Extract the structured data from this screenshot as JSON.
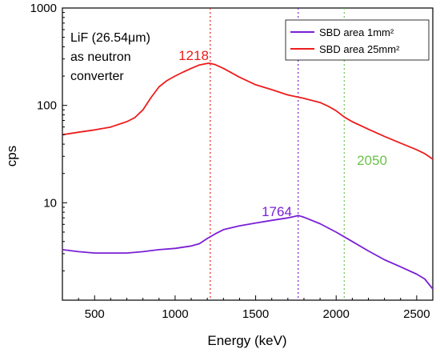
{
  "chart_data": {
    "type": "line",
    "xlabel": "Energy (keV)",
    "ylabel": "cps",
    "xlim": [
      300,
      2600
    ],
    "ylim": [
      1,
      1000
    ],
    "yscale": "log",
    "x_ticks": [
      500,
      1000,
      1500,
      2000,
      2500
    ],
    "x_tick_labels": [
      "500",
      "1000",
      "1500",
      "2000",
      "2500"
    ],
    "y_ticks": [
      10,
      100,
      1000
    ],
    "y_tick_labels": [
      "10",
      "100",
      "1000"
    ],
    "grid": false,
    "legend_position": "top-right",
    "series": [
      {
        "name": "SBD area 1mm²",
        "color": "#7a1fd6",
        "x": [
          300,
          400,
          500,
          600,
          700,
          800,
          900,
          1000,
          1100,
          1150,
          1200,
          1250,
          1300,
          1400,
          1500,
          1600,
          1700,
          1750,
          1764,
          1800,
          1900,
          2000,
          2100,
          2200,
          2300,
          2400,
          2500,
          2550,
          2600
        ],
        "y": [
          3.3,
          3.15,
          3.05,
          3.05,
          3.05,
          3.15,
          3.3,
          3.4,
          3.6,
          3.8,
          4.3,
          4.8,
          5.3,
          5.8,
          6.2,
          6.6,
          7.0,
          7.3,
          7.4,
          7.1,
          6.1,
          5.0,
          4.0,
          3.2,
          2.6,
          2.2,
          1.85,
          1.65,
          1.3
        ]
      },
      {
        "name": "SBD area 25mm²",
        "color": "#ee1c1c",
        "x": [
          300,
          400,
          500,
          600,
          700,
          750,
          800,
          850,
          900,
          950,
          1000,
          1050,
          1100,
          1150,
          1200,
          1218,
          1250,
          1300,
          1400,
          1500,
          1600,
          1700,
          1800,
          1900,
          1950,
          2000,
          2050,
          2100,
          2200,
          2300,
          2400,
          2500,
          2550,
          2600
        ],
        "y": [
          50,
          53,
          56,
          60,
          68,
          75,
          90,
          120,
          155,
          180,
          200,
          220,
          240,
          260,
          270,
          270,
          262,
          240,
          195,
          163,
          145,
          128,
          118,
          107,
          98,
          88,
          76,
          68,
          57,
          48,
          41,
          35,
          32,
          28
        ]
      }
    ],
    "reference_lines": [
      {
        "x": 1218,
        "label": "1218",
        "color": "#ee1c1c"
      },
      {
        "x": 1764,
        "label": "1764",
        "color": "#7a1fd6"
      },
      {
        "x": 2050,
        "label": "2050",
        "color": "#6cc24a"
      }
    ],
    "annotation": {
      "lines": [
        "LiF (26.54μm)",
        "as neutron",
        "converter"
      ]
    }
  }
}
